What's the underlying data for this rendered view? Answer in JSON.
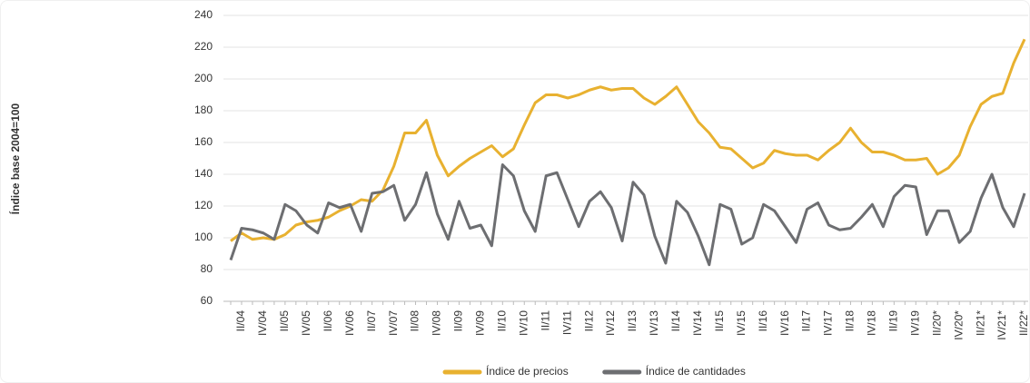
{
  "chart_data": {
    "type": "line",
    "y_label": "Índice base 2004=100",
    "categories": [
      null,
      "II/04",
      null,
      "IV/04",
      null,
      "II/05",
      null,
      "IV/05",
      null,
      "II/06",
      null,
      "IV/06",
      null,
      "II/07",
      null,
      "IV/07",
      null,
      "II/08",
      null,
      "IV/08",
      null,
      "II/09",
      null,
      "IV/09",
      null,
      "II/10",
      null,
      "IV/10",
      null,
      "II/11",
      null,
      "IV/11",
      null,
      "II/12",
      null,
      "IV/12",
      null,
      "II/13",
      null,
      "IV/13",
      null,
      "II/14",
      null,
      "IV/14",
      null,
      "II/15",
      null,
      "IV/15",
      null,
      "II/16",
      null,
      "IV/16",
      null,
      "II/17",
      null,
      "IV/17",
      null,
      "II/18",
      null,
      "IV/18",
      null,
      "II/19",
      null,
      "IV/19",
      null,
      "II/20*",
      null,
      "IV/20*",
      null,
      "II/21*",
      null,
      "IV/21*",
      null,
      "II/22*"
    ],
    "series": [
      {
        "name": "Índice de precios",
        "color": "#e8b130",
        "values": [
          98,
          103,
          99,
          100,
          99,
          102,
          108,
          110,
          111,
          113,
          117,
          120,
          124,
          123,
          130,
          145,
          166,
          166,
          174,
          152,
          139,
          145,
          150,
          154,
          158,
          151,
          156,
          171,
          185,
          190,
          190,
          188,
          190,
          193,
          195,
          193,
          194,
          194,
          188,
          184,
          189,
          195,
          184,
          173,
          166,
          157,
          156,
          150,
          144,
          147,
          155,
          153,
          152,
          152,
          149,
          155,
          160,
          169,
          160,
          154,
          154,
          152,
          149,
          149,
          150,
          140,
          144,
          152,
          170,
          184,
          189,
          191,
          210,
          225
        ]
      },
      {
        "name": "Índice de cantidades",
        "color": "#6d6e71",
        "values": [
          86,
          106,
          105,
          103,
          99,
          121,
          117,
          108,
          103,
          122,
          119,
          121,
          104,
          128,
          129,
          133,
          111,
          121,
          141,
          115,
          99,
          123,
          106,
          108,
          95,
          146,
          139,
          117,
          104,
          139,
          141,
          124,
          107,
          123,
          129,
          119,
          98,
          135,
          127,
          101,
          84,
          123,
          116,
          101,
          83,
          121,
          118,
          96,
          100,
          121,
          117,
          107,
          97,
          118,
          122,
          108,
          105,
          106,
          113,
          121,
          107,
          126,
          133,
          132,
          102,
          117,
          117,
          97,
          104,
          125,
          140,
          119,
          107,
          128
        ]
      }
    ],
    "ylim": [
      60,
      240
    ],
    "yticks": [
      60,
      80,
      100,
      120,
      140,
      160,
      180,
      200,
      220,
      240
    ],
    "grid": true,
    "legend": "bottom"
  }
}
